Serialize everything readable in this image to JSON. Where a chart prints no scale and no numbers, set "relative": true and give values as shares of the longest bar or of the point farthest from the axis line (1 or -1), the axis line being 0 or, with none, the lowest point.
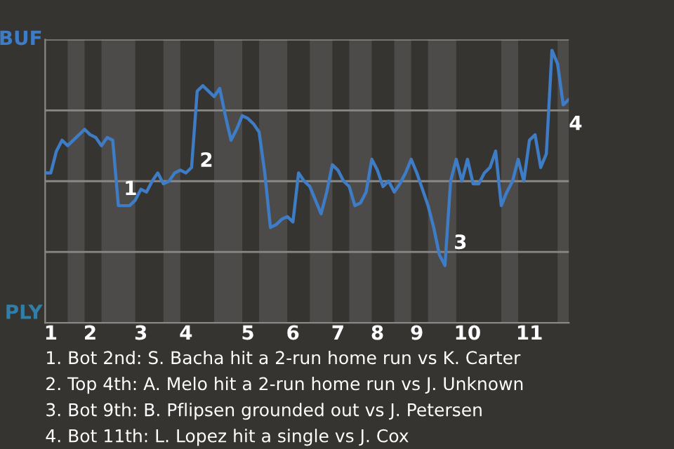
{
  "chart_data": {
    "type": "line",
    "relative": true,
    "categories": [
      null,
      "1",
      null,
      null,
      null,
      null,
      null,
      null,
      "2",
      null,
      null,
      null,
      null,
      null,
      null,
      null,
      null,
      "3",
      null,
      null,
      null,
      null,
      null,
      null,
      null,
      "4",
      null,
      null,
      null,
      null,
      null,
      null,
      null,
      null,
      null,
      null,
      "5",
      null,
      null,
      null,
      null,
      null,
      null,
      null,
      "6",
      null,
      null,
      null,
      null,
      null,
      null,
      null,
      "7",
      null,
      null,
      null,
      null,
      null,
      null,
      "8",
      null,
      null,
      null,
      null,
      null,
      null,
      "9",
      null,
      null,
      null,
      null,
      null,
      null,
      null,
      null,
      "10",
      null,
      null,
      null,
      null,
      null,
      null,
      null,
      null,
      null,
      null,
      "11",
      null,
      null,
      null,
      null,
      null,
      null,
      null
    ],
    "series": [
      {
        "values": [
          0.55,
          0.55,
          0.63,
          0.67,
          0.65,
          0.67,
          0.69,
          0.71,
          0.69,
          0.68,
          0.65,
          0.68,
          0.67,
          0.43,
          0.43,
          0.43,
          0.45,
          0.49,
          0.48,
          0.52,
          0.55,
          0.51,
          0.52,
          0.55,
          0.56,
          0.55,
          0.57,
          0.85,
          0.87,
          0.85,
          0.83,
          0.86,
          0.76,
          0.67,
          0.71,
          0.76,
          0.75,
          0.73,
          0.7,
          0.55,
          0.35,
          0.36,
          0.38,
          0.39,
          0.37,
          0.55,
          0.52,
          0.5,
          0.45,
          0.4,
          0.48,
          0.58,
          0.56,
          0.52,
          0.5,
          0.43,
          0.44,
          0.48,
          0.6,
          0.56,
          0.5,
          0.52,
          0.48,
          0.51,
          0.55,
          0.6,
          0.55,
          0.49,
          0.43,
          0.35,
          0.25,
          0.21,
          0.52,
          0.6,
          0.52,
          0.6,
          0.51,
          0.51,
          0.55,
          0.57,
          0.63,
          0.43,
          0.48,
          0.52,
          0.6,
          0.52,
          0.67,
          0.69,
          0.57,
          0.62,
          1,
          0.95,
          0.8,
          0.82
        ],
        "color": "#3f7cc6"
      }
    ],
    "grid": true,
    "annotations": [
      "1",
      "2",
      "3",
      "4",
      "BUF",
      "PLY",
      "1. Bot 2nd: S. Bacha hit a 2-run home run vs K. Carter",
      "2. Top 4th: A. Melo hit a 2-run home run vs J. Unknown",
      "3. Bot 9th: B. Pflipsen grounded out vs J. Petersen",
      "4. Bot 11th: L. Lopez hit a single vs J. Cox"
    ]
  }
}
